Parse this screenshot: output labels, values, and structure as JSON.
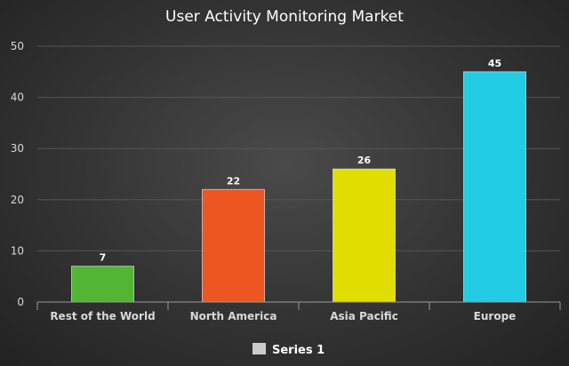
{
  "chart_data": {
    "type": "bar",
    "title": "User Activity Monitoring Market",
    "categories": [
      "Rest of the World",
      "North America",
      "Asia Pacific",
      "Europe"
    ],
    "series": [
      {
        "name": "Series 1",
        "values": [
          7,
          22,
          26,
          45
        ]
      }
    ],
    "bar_colors": [
      "#52b534",
      "#ec5620",
      "#e0de00",
      "#22cce4"
    ],
    "legend_color": "#cccccc",
    "ylim": [
      0,
      50
    ],
    "yticks": [
      0,
      10,
      20,
      30,
      40,
      50
    ],
    "grid": true,
    "legend_position": "bottom",
    "xlabel": "",
    "ylabel": ""
  }
}
